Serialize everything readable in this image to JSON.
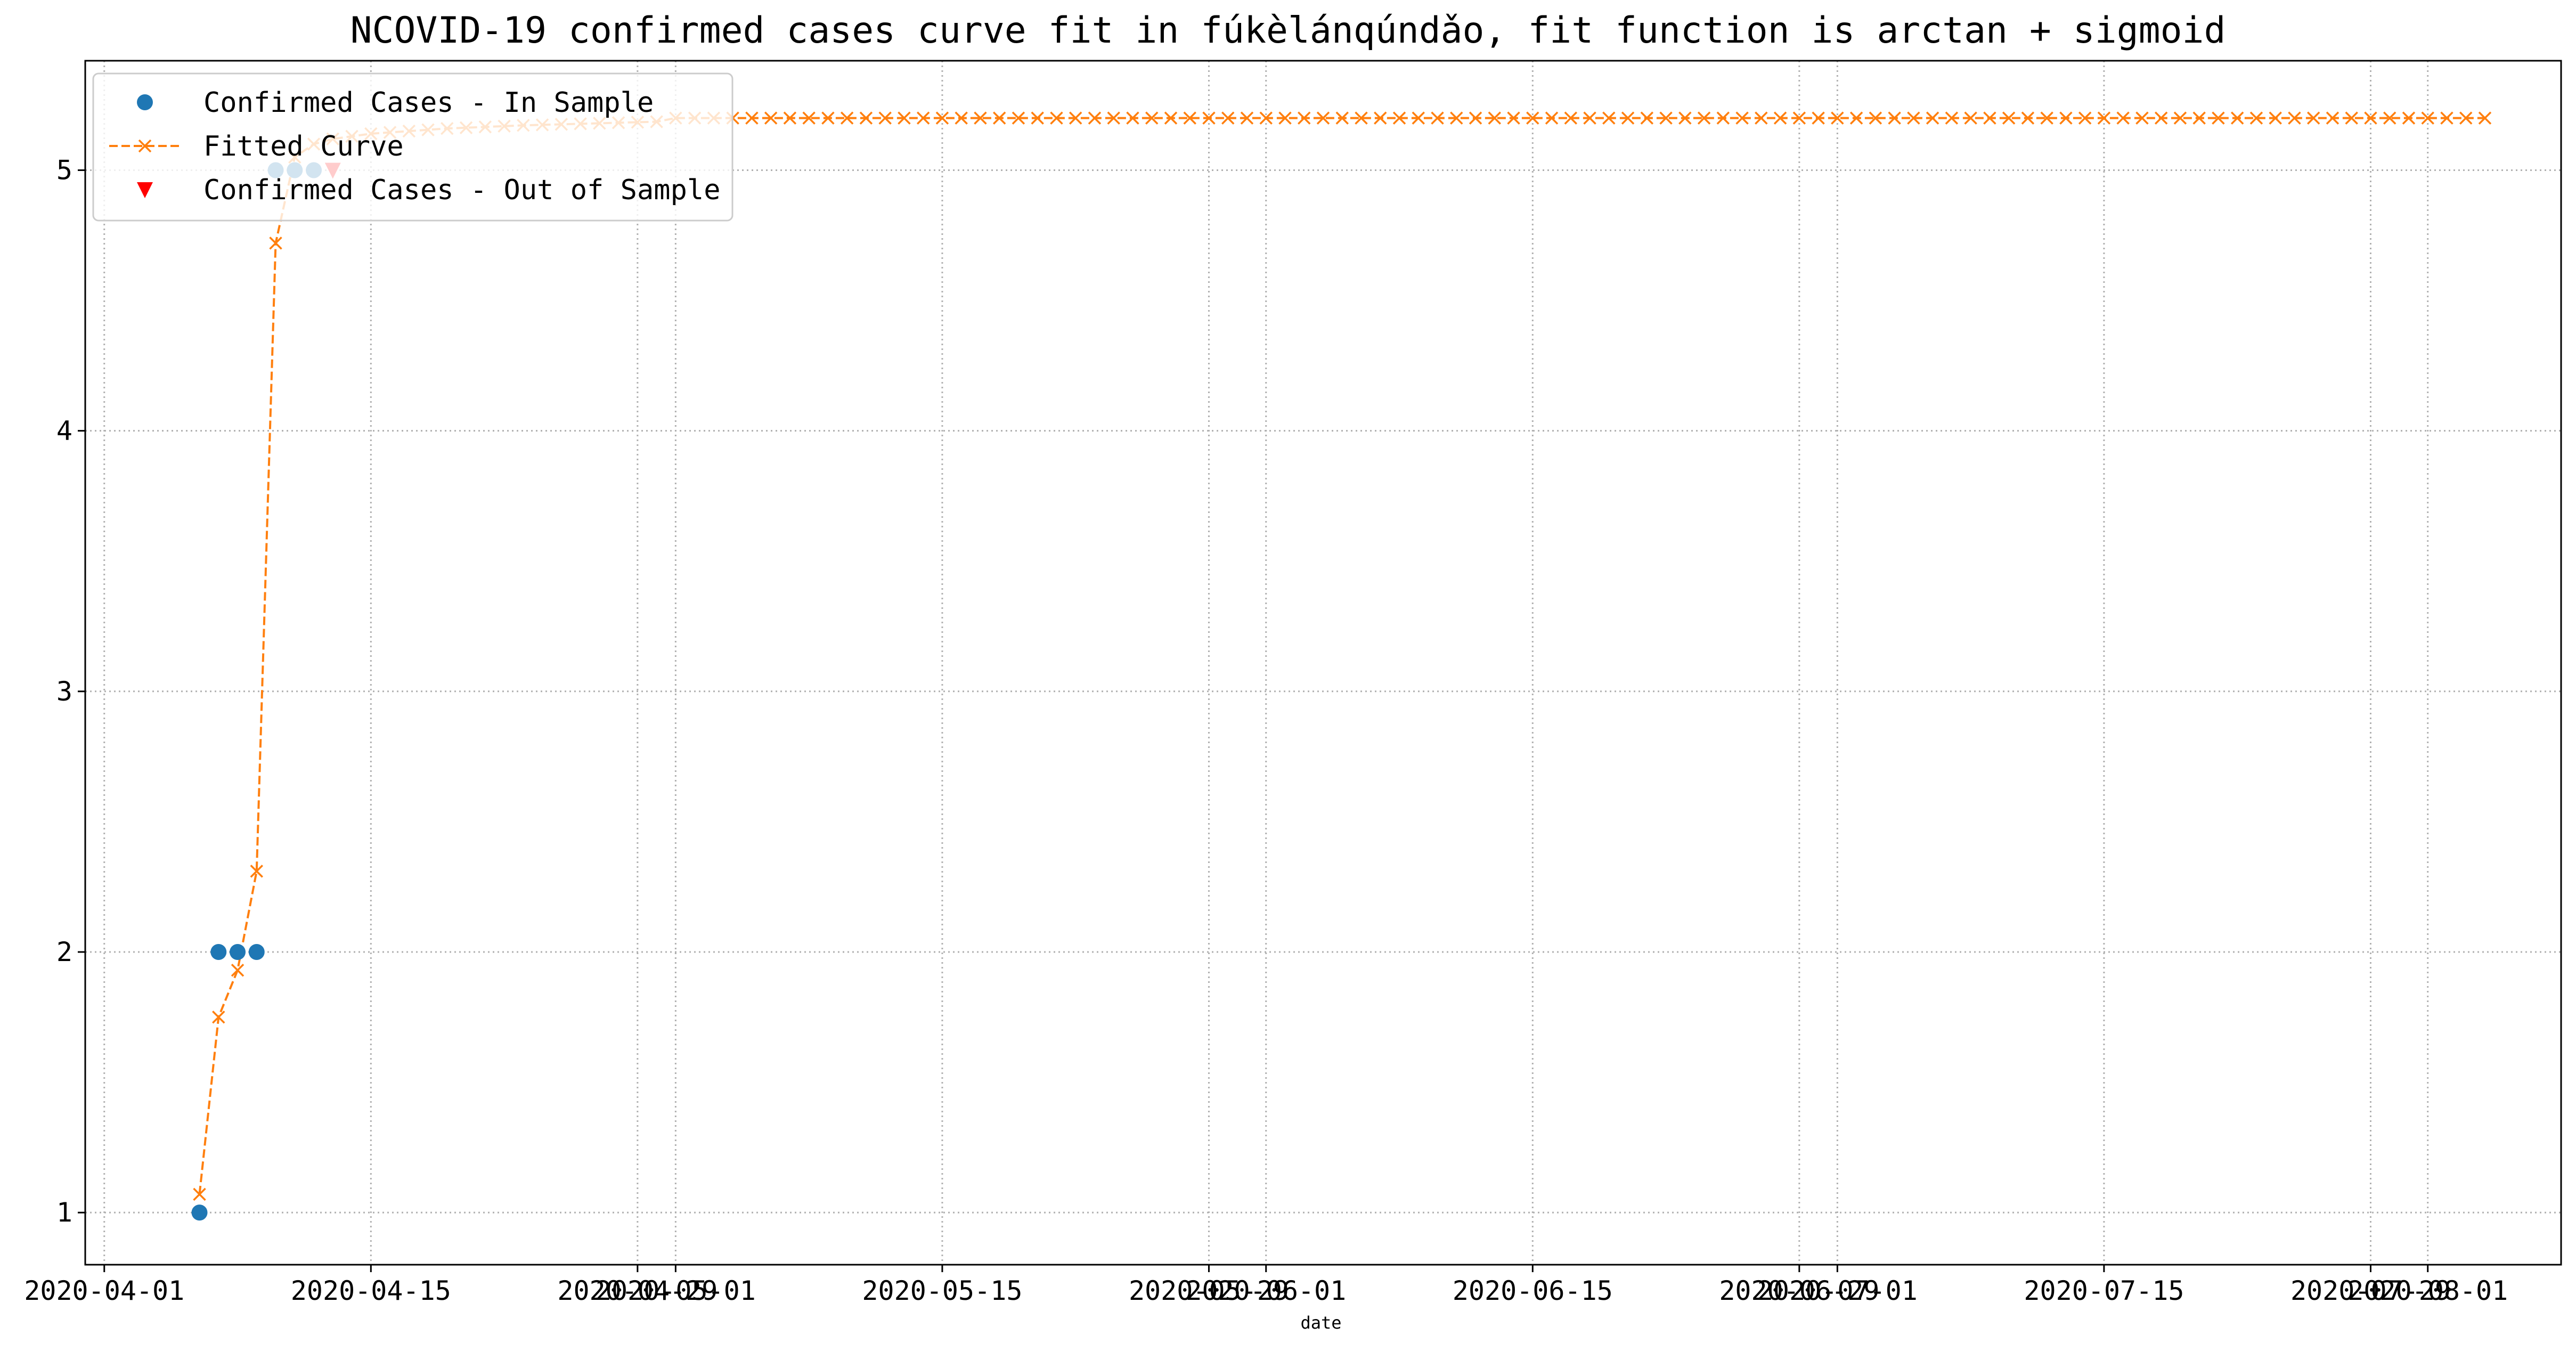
{
  "chart_data": {
    "type": "scatter",
    "title": "NCOVID-19 confirmed cases curve fit in fúkèlánqúndǎo, fit function is arctan + sigmoid",
    "xlabel": "date",
    "ylabel": "",
    "xlim": [
      "2020-03-31",
      "2020-08-08"
    ],
    "ylim": [
      0.8,
      5.42
    ],
    "grid": true,
    "grid_style": "dotted",
    "legend_position": "upper-left",
    "x_ticks": [
      {
        "date": "2020-04-01",
        "label": "2020-04-01"
      },
      {
        "date": "2020-04-15",
        "label": "2020-04-15"
      },
      {
        "date": "2020-04-29",
        "label": "2020-04-29"
      },
      {
        "date": "2020-05-01",
        "label": "2020-05-01"
      },
      {
        "date": "2020-05-15",
        "label": "2020-05-15"
      },
      {
        "date": "2020-05-29",
        "label": "2020-05-29"
      },
      {
        "date": "2020-06-01",
        "label": "2020-06-01"
      },
      {
        "date": "2020-06-15",
        "label": "2020-06-15"
      },
      {
        "date": "2020-06-29",
        "label": "2020-06-29"
      },
      {
        "date": "2020-07-01",
        "label": "2020-07-01"
      },
      {
        "date": "2020-07-15",
        "label": "2020-07-15"
      },
      {
        "date": "2020-07-29",
        "label": "2020-07-29"
      },
      {
        "date": "2020-08-01",
        "label": "2020-08-01"
      }
    ],
    "y_ticks": [
      1,
      2,
      3,
      4,
      5
    ],
    "series": [
      {
        "name": "Confirmed Cases - In Sample",
        "marker": "circle",
        "color": "#1f77b4",
        "x": [
          "2020-04-06",
          "2020-04-07",
          "2020-04-08",
          "2020-04-09",
          "2020-04-10",
          "2020-04-11",
          "2020-04-12"
        ],
        "y": [
          1,
          2,
          2,
          2,
          5,
          5,
          5
        ]
      },
      {
        "name": "Fitted Curve",
        "marker": "x",
        "linestyle": "dashed",
        "color": "#ff7f0e",
        "x_start": "2020-04-06",
        "x_end": "2020-08-04",
        "y_head": [
          1.07,
          1.75,
          1.93,
          2.31,
          4.72,
          5.05,
          5.1,
          5.12,
          5.13,
          5.14,
          5.145,
          5.15,
          5.155,
          5.16,
          5.163,
          5.166,
          5.169,
          5.172,
          5.174,
          5.176,
          5.178,
          5.18,
          5.182,
          5.184,
          5.186
        ],
        "y_tail": 5.2
      },
      {
        "name": "Confirmed Cases - Out of Sample",
        "marker": "triangle-down",
        "color": "#ff0000",
        "x": [
          "2020-04-13"
        ],
        "y": [
          5
        ]
      }
    ]
  }
}
